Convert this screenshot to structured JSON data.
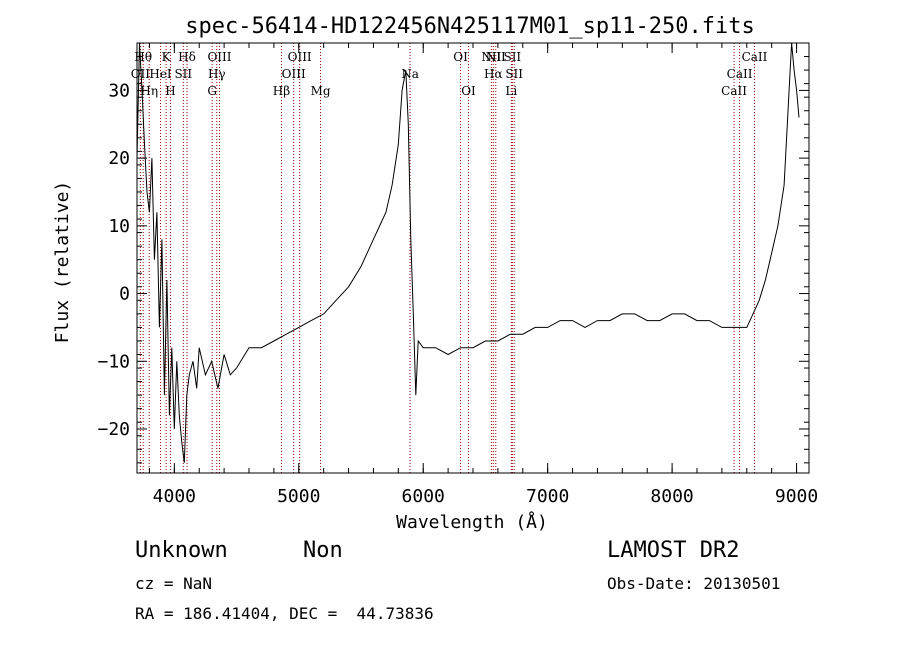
{
  "chart_data": {
    "type": "line",
    "title": "spec-56414-HD122456N425117M01_sp11-250.fits",
    "xlabel": "Wavelength (Å)",
    "ylabel": "Flux (relative)",
    "xlim": [
      3700,
      9100
    ],
    "ylim": [
      -26.5,
      37
    ],
    "xticks": [
      4000,
      5000,
      6000,
      7000,
      8000,
      9000
    ],
    "yticks": [
      -20,
      -10,
      0,
      10,
      20,
      30
    ],
    "line_color": "#000000",
    "marker_color": "#990000",
    "series": [
      {
        "x": [
          3700,
          3720,
          3740,
          3760,
          3780,
          3800,
          3820,
          3840,
          3860,
          3880,
          3900,
          3920,
          3940,
          3960,
          3980,
          4000,
          4020,
          4040,
          4060,
          4080,
          4100,
          4120,
          4150,
          4180,
          4200,
          4250,
          4300,
          4350,
          4400,
          4450,
          4500,
          4600,
          4700,
          4800,
          4900,
          5000,
          5100,
          5200,
          5300,
          5400,
          5500,
          5600,
          5700,
          5750,
          5800,
          5830,
          5860,
          5880,
          5900,
          5920,
          5940,
          5960,
          6000,
          6100,
          6200,
          6300,
          6400,
          6500,
          6600,
          6700,
          6800,
          6900,
          7000,
          7100,
          7200,
          7300,
          7400,
          7500,
          7600,
          7700,
          7800,
          7900,
          8000,
          8100,
          8200,
          8300,
          8400,
          8500,
          8600,
          8650,
          8700,
          8750,
          8800,
          8850,
          8900,
          8940,
          8960,
          8980,
          9000,
          9020
        ],
        "y": [
          20,
          38,
          30,
          22,
          15,
          12,
          20,
          5,
          12,
          -5,
          8,
          -15,
          2,
          -18,
          -8,
          -20,
          -10,
          -18,
          -22,
          -25,
          -15,
          -12,
          -10,
          -14,
          -8,
          -12,
          -10,
          -14,
          -9,
          -12,
          -11,
          -8,
          -8,
          -7,
          -6,
          -5,
          -4,
          -3,
          -1,
          1,
          4,
          8,
          12,
          16,
          22,
          30,
          33,
          25,
          8,
          -3,
          -15,
          -7,
          -8,
          -8,
          -9,
          -8,
          -8,
          -7,
          -7,
          -6,
          -6,
          -5,
          -5,
          -4,
          -4,
          -5,
          -4,
          -4,
          -3,
          -3,
          -4,
          -4,
          -3,
          -3,
          -4,
          -4,
          -5,
          -5,
          -5,
          -3,
          -1,
          2,
          6,
          10,
          16,
          30,
          38,
          33,
          30,
          26
        ]
      }
    ],
    "lines": [
      {
        "wl": 3727,
        "label": "OII",
        "row": 2
      },
      {
        "wl": 3750,
        "label": "Hθ",
        "row": 1
      },
      {
        "wl": 3798,
        "label": "Hη",
        "row": 3
      },
      {
        "wl": 3889,
        "label": "HeI",
        "row": 2
      },
      {
        "wl": 3934,
        "label": "K",
        "row": 1
      },
      {
        "wl": 3969,
        "label": "H",
        "row": 3
      },
      {
        "wl": 4072,
        "label": "SII",
        "row": 2
      },
      {
        "wl": 4102,
        "label": "Hδ",
        "row": 1
      },
      {
        "wl": 4304,
        "label": "G",
        "row": 3
      },
      {
        "wl": 4341,
        "label": "Hγ",
        "row": 2
      },
      {
        "wl": 4363,
        "label": "OIII",
        "row": 1
      },
      {
        "wl": 4861,
        "label": "Hβ",
        "row": 3
      },
      {
        "wl": 4959,
        "label": "OIII",
        "row": 2
      },
      {
        "wl": 5007,
        "label": "OIII",
        "row": 1
      },
      {
        "wl": 5175,
        "label": "Mg",
        "row": 3
      },
      {
        "wl": 5894,
        "label": "Na",
        "row": 2
      },
      {
        "wl": 6300,
        "label": "OI",
        "row": 1
      },
      {
        "wl": 6364,
        "label": "OI",
        "row": 3
      },
      {
        "wl": 6548,
        "label": "NII",
        "row": 1
      },
      {
        "wl": 6563,
        "label": "Hα",
        "row": 2
      },
      {
        "wl": 6583,
        "label": "NII",
        "row": 1
      },
      {
        "wl": 6708,
        "label": "Li",
        "row": 3
      },
      {
        "wl": 6716,
        "label": "SII",
        "row": 1
      },
      {
        "wl": 6731,
        "label": "SII",
        "row": 2
      },
      {
        "wl": 8498,
        "label": "CaII",
        "row": 3
      },
      {
        "wl": 8542,
        "label": "CaII",
        "row": 2
      },
      {
        "wl": 8662,
        "label": "CaII",
        "row": 1
      }
    ]
  },
  "info": {
    "class": "Unknown",
    "subclass": "Non",
    "survey": "LAMOST DR2",
    "cz": "cz = NaN",
    "obs_date": "Obs-Date: 20130501",
    "radec": "RA = 186.41404, DEC =  44.73836"
  }
}
